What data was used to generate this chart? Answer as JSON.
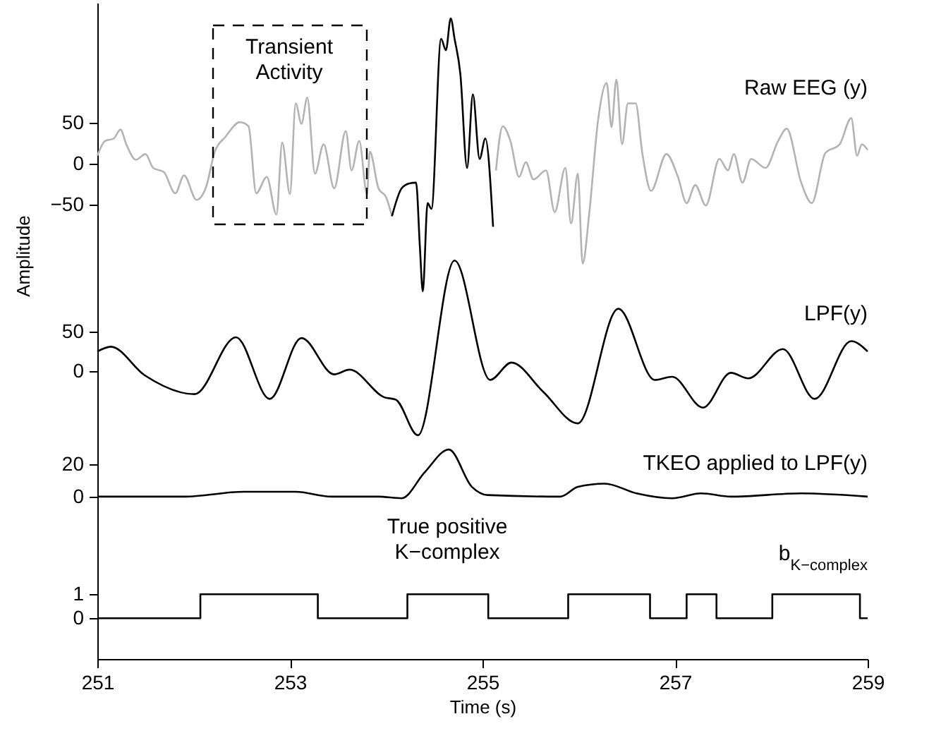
{
  "chart_data": [
    {
      "type": "line",
      "ylabel": "Amplitude",
      "xlim": [
        251,
        259
      ],
      "tick_labels": "y",
      "ylim": [
        -421,
        197
      ],
      "yticks": [
        {
          "value": -50,
          "label": "−50"
        },
        0,
        50
      ],
      "y2lim": [
        -173,
        466
      ],
      "y2ticks": [
        0,
        50
      ],
      "y3lim": [
        -7,
        304
      ],
      "y3ticks": [
        0,
        20
      ],
      "grid": false,
      "line_style": "solid",
      "annotations": [
        "Transient\nActivity"
      ],
      "series": [
        {
          "name": "Raw EEG (y)",
          "color": "#b3b3b3",
          "x": [
            251.0,
            251.08,
            251.17,
            251.24,
            251.3,
            251.4,
            251.5,
            251.58,
            251.69,
            251.81,
            251.9,
            252.03,
            252.13,
            252.22,
            252.33,
            252.48,
            252.57,
            252.65,
            252.76,
            252.86,
            252.92,
            253.0,
            253.06,
            253.12,
            253.18,
            253.26,
            253.35,
            253.46,
            253.58,
            253.64,
            253.72,
            253.8,
            253.83,
            253.92,
            254.0,
            254.06,
            254.6,
            255.14,
            255.21,
            255.29,
            255.38,
            255.45,
            255.53,
            255.66,
            255.75,
            255.86,
            255.92,
            255.99,
            256.04,
            256.11,
            256.2,
            256.29,
            256.34,
            256.39,
            256.45,
            256.51,
            256.59,
            256.66,
            256.75,
            256.91,
            257.03,
            257.12,
            257.21,
            257.32,
            257.46,
            257.55,
            257.61,
            257.7,
            257.79,
            257.94,
            258.07,
            258.16,
            258.31,
            258.42,
            258.56,
            258.71,
            258.83,
            258.89,
            258.94,
            259.0
          ],
          "values": [
            10,
            28,
            31,
            42,
            24,
            5,
            12,
            -5,
            -10,
            -36,
            -14,
            -44,
            -28,
            15,
            33,
            51,
            46,
            -36,
            -16,
            -62,
            26,
            -37,
            74,
            49,
            81,
            -12,
            24,
            -30,
            40,
            -8,
            28,
            -37,
            15,
            -30,
            -41,
            -64,
            null,
            -8,
            46,
            28,
            -16,
            2,
            -19,
            -8,
            -59,
            -5,
            -73,
            -12,
            -122,
            -59,
            53,
            99,
            45,
            103,
            24,
            74,
            74,
            13,
            -33,
            12,
            -16,
            -48,
            -26,
            -51,
            6,
            -8,
            12,
            -23,
            6,
            -5,
            28,
            43,
            -23,
            -48,
            13,
            24,
            56,
            10,
            24,
            17
          ]
        },
        {
          "color": "#000000",
          "x": [
            254.06,
            254.16,
            254.24,
            254.31,
            254.35,
            254.38,
            254.43,
            254.47,
            254.57,
            254.62,
            254.67,
            254.71,
            254.77,
            254.84,
            254.9,
            254.97,
            255.03,
            255.11
          ],
          "values": [
            -64,
            -30,
            -24,
            -23,
            -102,
            -156,
            -48,
            -55,
            153,
            139,
            178,
            153,
            110,
            -5,
            85,
            6,
            31,
            -77
          ]
        },
        {
          "name": "LPF(y)",
          "color": "#000000",
          "axis": "y2",
          "x": [
            251.0,
            251.14,
            251.49,
            252.01,
            252.44,
            252.79,
            253.12,
            253.46,
            253.62,
            253.98,
            254.1,
            254.33,
            254.71,
            255.08,
            255.3,
            255.63,
            255.99,
            256.41,
            256.79,
            256.97,
            257.29,
            257.58,
            257.76,
            258.12,
            258.45,
            258.83,
            259.0
          ],
          "values": [
            25,
            31,
            -5,
            -29,
            43,
            -35,
            42,
            -4,
            2,
            -33,
            -36,
            -81,
            140,
            -11,
            11,
            -26,
            -66,
            79,
            -11,
            -7,
            -46,
            -2,
            -9,
            28,
            -35,
            38,
            25
          ]
        },
        {
          "name": "TKEO applied to LPF(y)",
          "color": "#000000",
          "axis": "y3",
          "x": [
            251.0,
            251.9,
            252.52,
            253.06,
            253.43,
            253.92,
            254.16,
            254.4,
            254.65,
            254.89,
            255.05,
            255.81,
            255.99,
            256.27,
            256.6,
            256.97,
            257.27,
            257.58,
            258.31,
            259.0
          ],
          "values": [
            0,
            0,
            3,
            3,
            0,
            0,
            -1,
            15,
            29,
            6,
            1,
            0,
            6,
            8,
            2,
            -1,
            2,
            0,
            2,
            0
          ]
        }
      ]
    },
    {
      "type": "step",
      "xlabel": "Time (s)",
      "xlim": [
        251,
        259
      ],
      "xticks": [
        251,
        253,
        255,
        257,
        259
      ],
      "ylim": [
        -1.7,
        4.6
      ],
      "yticks": [
        0,
        1
      ],
      "grid": false,
      "line_style": "solid",
      "annotations": [
        "True positive\nK−complex"
      ],
      "series": [
        {
          "name": "b$_{K−complex}$",
          "color": "#000000",
          "x": [
            251,
            252.07,
            253.29,
            254.22,
            255.06,
            255.89,
            256.74,
            257.12,
            257.43,
            258.01,
            258.92,
            259
          ],
          "values": [
            0,
            1,
            0,
            1,
            0,
            1,
            0,
            1,
            0,
            1,
            0,
            0
          ]
        }
      ]
    }
  ]
}
